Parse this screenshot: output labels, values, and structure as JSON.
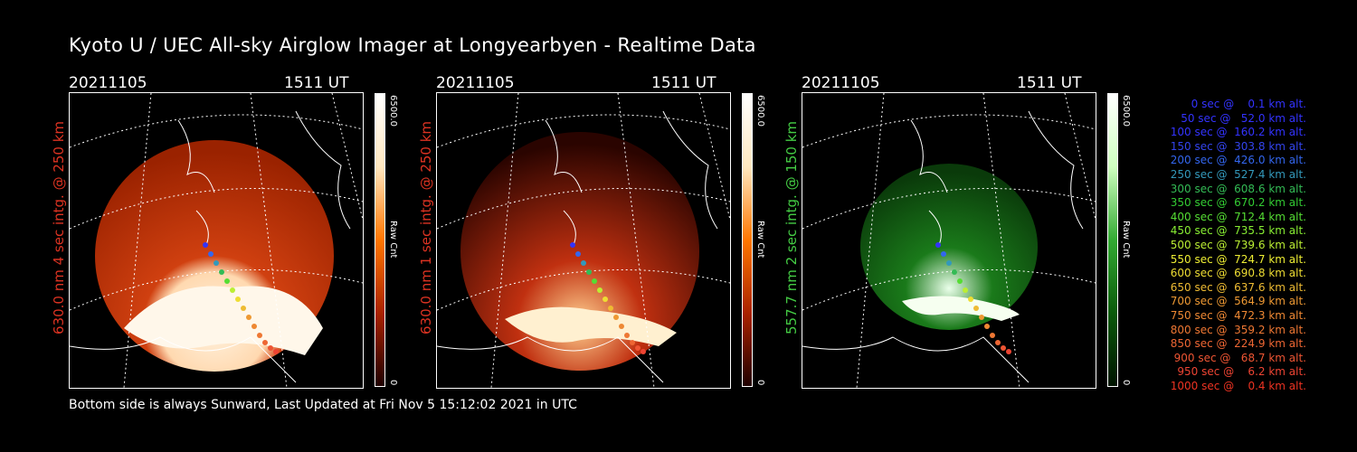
{
  "title": "Kyoto U / UEC All-sky Airglow Imager at Longyearbyen - Realtime Data",
  "footer": "Bottom side is always Sunward, Last Updated at Fri Nov  5 15:12:02 2021 in UTC",
  "panels": [
    {
      "date": "20211105",
      "time": "1511 UT",
      "side_label": "630.0 nm 4 sec intg. @ 250 km",
      "cbar_max": "6500.0",
      "cbar_unit": "Raw Cnt",
      "cbar_min": "0",
      "color": "#dd3322"
    },
    {
      "date": "20211105",
      "time": "1511 UT",
      "side_label": "630.0 nm 1 sec intg. @ 250 km",
      "cbar_max": "6500.0",
      "cbar_unit": "Raw Cnt",
      "cbar_min": "0",
      "color": "#dd3322"
    },
    {
      "date": "20211105",
      "time": "1511 UT",
      "side_label": "557.7 nm 2 sec intg. @ 150 km",
      "cbar_max": "6500.0",
      "cbar_unit": "Raw Cnt",
      "cbar_min": "0",
      "color": "#44cc44"
    }
  ],
  "legend": [
    {
      "text": "   0 sec @    0.1 km alt.",
      "color": "#3333ff"
    },
    {
      "text": "  50 sec @   52.0 km alt.",
      "color": "#3333ff"
    },
    {
      "text": " 100 sec @  160.2 km alt.",
      "color": "#3333ff"
    },
    {
      "text": " 150 sec @  303.8 km alt.",
      "color": "#3344ee"
    },
    {
      "text": " 200 sec @  426.0 km alt.",
      "color": "#3366ee"
    },
    {
      "text": " 250 sec @  527.4 km alt.",
      "color": "#3399bb"
    },
    {
      "text": " 300 sec @  608.6 km alt.",
      "color": "#33bb55"
    },
    {
      "text": " 350 sec @  670.2 km alt.",
      "color": "#33cc33"
    },
    {
      "text": " 400 sec @  712.4 km alt.",
      "color": "#55dd33"
    },
    {
      "text": " 450 sec @  735.5 km alt.",
      "color": "#88ee33"
    },
    {
      "text": " 500 sec @  739.6 km alt.",
      "color": "#bbee33"
    },
    {
      "text": " 550 sec @  724.7 km alt.",
      "color": "#eeee33"
    },
    {
      "text": " 600 sec @  690.8 km alt.",
      "color": "#eedd33"
    },
    {
      "text": " 650 sec @  637.6 km alt.",
      "color": "#eebb33"
    },
    {
      "text": " 700 sec @  564.9 km alt.",
      "color": "#ee9933"
    },
    {
      "text": " 750 sec @  472.3 km alt.",
      "color": "#ee8833"
    },
    {
      "text": " 800 sec @  359.2 km alt.",
      "color": "#ee7733"
    },
    {
      "text": " 850 sec @  224.9 km alt.",
      "color": "#ee6633"
    },
    {
      "text": " 900 sec @   68.7 km alt.",
      "color": "#ee5533"
    },
    {
      "text": " 950 sec @    6.2 km alt.",
      "color": "#ee4433"
    },
    {
      "text": "1000 sec @    0.4 km alt.",
      "color": "#ee3322"
    }
  ]
}
